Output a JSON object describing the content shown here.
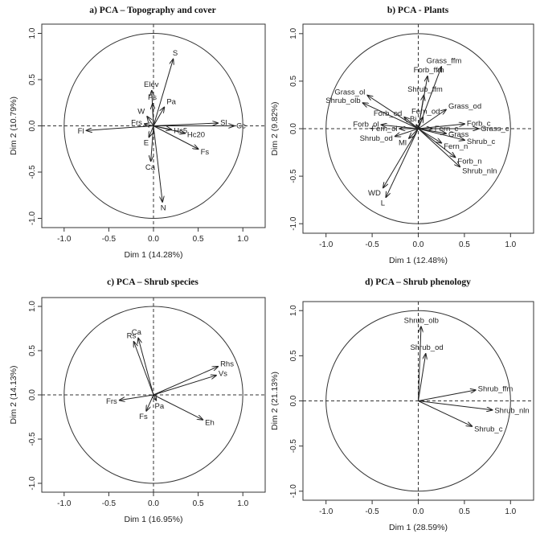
{
  "chart_data": [
    {
      "type": "scatter",
      "title": "a) PCA – Topography and cover",
      "xlabel": "Dim 1 (14.28%)",
      "ylabel": "Dim 2 (10.79%)",
      "xlim": [
        -1.25,
        1.25
      ],
      "ylim": [
        -1.1,
        1.1
      ],
      "xticks": [
        "-1.0",
        "-0.5",
        "0.0",
        "0.5",
        "1.0"
      ],
      "yticks": [
        "-1.0",
        "-0.5",
        "0.0",
        "0.5",
        "1.0"
      ],
      "vectors": [
        {
          "name": "S",
          "x": 0.22,
          "y": 0.72
        },
        {
          "name": "Elev",
          "x": -0.02,
          "y": 0.38
        },
        {
          "name": "Ps",
          "x": -0.01,
          "y": 0.24
        },
        {
          "name": "Pa",
          "x": 0.12,
          "y": 0.2
        },
        {
          "name": "W",
          "x": -0.07,
          "y": 0.1
        },
        {
          "name": "Frs",
          "x": -0.1,
          "y": 0.02
        },
        {
          "name": "Fl",
          "x": -0.75,
          "y": -0.05
        },
        {
          "name": "Sl",
          "x": 0.72,
          "y": 0.03
        },
        {
          "name": "Cc",
          "x": 0.9,
          "y": 0.0
        },
        {
          "name": "Hc5",
          "x": 0.2,
          "y": -0.04
        },
        {
          "name": "Hc20",
          "x": 0.35,
          "y": -0.08
        },
        {
          "name": "Fs",
          "x": 0.5,
          "y": -0.25
        },
        {
          "name": "E",
          "x": -0.05,
          "y": -0.12
        },
        {
          "name": "Ca",
          "x": -0.03,
          "y": -0.38
        },
        {
          "name": "N",
          "x": 0.1,
          "y": -0.82
        }
      ]
    },
    {
      "type": "scatter",
      "title": "b) PCA - Plants",
      "xlabel": "Dim 1 (12.48%)",
      "ylabel": "Dim 2 (9.82%)",
      "xlim": [
        -1.25,
        1.25
      ],
      "ylim": [
        -1.1,
        1.1
      ],
      "xticks": [
        "-1.0",
        "-0.5",
        "0.0",
        "0.5",
        "1.0"
      ],
      "yticks": [
        "-1.0",
        "-0.5",
        "0.0",
        "0.5",
        "1.0"
      ],
      "vectors": [
        {
          "name": "Grass_ffm",
          "x": 0.25,
          "y": 0.65
        },
        {
          "name": "Forb_ffm",
          "x": 0.1,
          "y": 0.55
        },
        {
          "name": "Shrub_ffm",
          "x": 0.06,
          "y": 0.35
        },
        {
          "name": "Grass_ol",
          "x": -0.55,
          "y": 0.35
        },
        {
          "name": "Shrub_olb",
          "x": -0.6,
          "y": 0.27
        },
        {
          "name": "Grass_od",
          "x": 0.3,
          "y": 0.2
        },
        {
          "name": "Fern_od",
          "x": 0.05,
          "y": 0.12
        },
        {
          "name": "Forb_od",
          "x": -0.15,
          "y": 0.12
        },
        {
          "name": "Forb_c",
          "x": 0.5,
          "y": 0.05
        },
        {
          "name": "Grass_c",
          "x": 0.65,
          "y": 0.0
        },
        {
          "name": "Forb_ol",
          "x": -0.4,
          "y": 0.04
        },
        {
          "name": "Fern_ol",
          "x": -0.2,
          "y": 0.0
        },
        {
          "name": "Fern_c",
          "x": 0.15,
          "y": 0.0
        },
        {
          "name": "Grass",
          "x": 0.3,
          "y": -0.05
        },
        {
          "name": "Shrub_od",
          "x": -0.25,
          "y": -0.08
        },
        {
          "name": "Fern_n",
          "x": 0.25,
          "y": -0.15
        },
        {
          "name": "Shrub_c",
          "x": 0.5,
          "y": -0.12
        },
        {
          "name": "Forb_n",
          "x": 0.4,
          "y": -0.3
        },
        {
          "name": "Shrub_nln",
          "x": 0.45,
          "y": -0.4
        },
        {
          "name": "Ml",
          "x": -0.1,
          "y": -0.1
        },
        {
          "name": "WD",
          "x": -0.38,
          "y": -0.62
        },
        {
          "name": "L",
          "x": -0.35,
          "y": -0.72
        },
        {
          "name": "Bi",
          "x": -0.02,
          "y": 0.04
        }
      ]
    },
    {
      "type": "scatter",
      "title": "c) PCA – Shrub species",
      "xlabel": "Dim 1 (16.95%)",
      "ylabel": "Dim 2 (14.13%)",
      "xlim": [
        -1.25,
        1.25
      ],
      "ylim": [
        -1.1,
        1.1
      ],
      "xticks": [
        "-1.0",
        "-0.5",
        "0.0",
        "0.5",
        "1.0"
      ],
      "yticks": [
        "-1.0",
        "-0.5",
        "0.0",
        "0.5",
        "1.0"
      ],
      "vectors": [
        {
          "name": "Ca",
          "x": -0.17,
          "y": 0.64
        },
        {
          "name": "Rs",
          "x": -0.22,
          "y": 0.6
        },
        {
          "name": "Rhs",
          "x": 0.72,
          "y": 0.32
        },
        {
          "name": "Vs",
          "x": 0.7,
          "y": 0.22
        },
        {
          "name": "Frs",
          "x": -0.38,
          "y": -0.06
        },
        {
          "name": "Fs",
          "x": -0.08,
          "y": -0.18
        },
        {
          "name": "Pa",
          "x": 0.03,
          "y": -0.06
        },
        {
          "name": "Eh",
          "x": 0.55,
          "y": -0.28
        }
      ]
    },
    {
      "type": "scatter",
      "title": "d) PCA – Shrub phenology",
      "xlabel": "Dim 1 (28.59%)",
      "ylabel": "Dim 2 (21.13%)",
      "xlim": [
        -1.25,
        1.25
      ],
      "ylim": [
        -1.1,
        1.1
      ],
      "xticks": [
        "-1.0",
        "-0.5",
        "0.0",
        "0.5",
        "1.0"
      ],
      "yticks": [
        "-1.0",
        "-0.5",
        "0.0",
        "0.5",
        "1.0"
      ],
      "vectors": [
        {
          "name": "Shrub_olb",
          "x": 0.03,
          "y": 0.82
        },
        {
          "name": "Shrub_od",
          "x": 0.08,
          "y": 0.52
        },
        {
          "name": "Shrub_ffm",
          "x": 0.62,
          "y": 0.12
        },
        {
          "name": "Shrub_nln",
          "x": 0.8,
          "y": -0.1
        },
        {
          "name": "Shrub_c",
          "x": 0.58,
          "y": -0.28
        }
      ]
    }
  ]
}
